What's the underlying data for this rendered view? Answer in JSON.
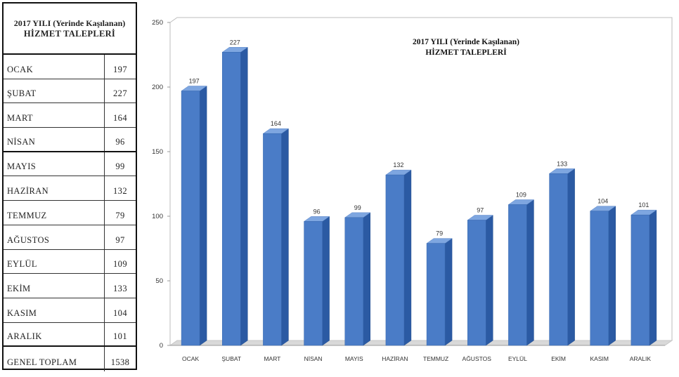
{
  "table": {
    "title_line1": "2017 YILI (Yerinde Kaşılanan)",
    "title_line2": "HİZMET TALEPLERİ",
    "rows": [
      {
        "month": "OCAK",
        "value": "197"
      },
      {
        "month": "ŞUBAT",
        "value": "227"
      },
      {
        "month": "MART",
        "value": "164"
      },
      {
        "month": "NİSAN",
        "value": "96"
      },
      {
        "month": "MAYIS",
        "value": "99"
      },
      {
        "month": "HAZİRAN",
        "value": "132"
      },
      {
        "month": "TEMMUZ",
        "value": "79"
      },
      {
        "month": "AĞUSTOS",
        "value": "97"
      },
      {
        "month": "EYLÜL",
        "value": "109"
      },
      {
        "month": "EKİM",
        "value": "133"
      },
      {
        "month": "KASIM",
        "value": "104"
      },
      {
        "month": "ARALIK",
        "value": "101"
      },
      {
        "month": "GENEL TOPLAM",
        "value": "1538"
      }
    ]
  },
  "chart_data": {
    "type": "bar",
    "title_line1": "2017 YILI (Yerinde Kaşılanan)",
    "title_line2": "HİZMET TALEPLERİ",
    "categories": [
      "OCAK",
      "ŞUBAT",
      "MART",
      "NİSAN",
      "MAYIS",
      "HAZİRAN",
      "TEMMUZ",
      "AĞUSTOS",
      "EYLÜL",
      "EKİM",
      "KASIM",
      "ARALIK"
    ],
    "values": [
      197,
      227,
      164,
      96,
      99,
      132,
      79,
      97,
      109,
      133,
      104,
      101
    ],
    "ylim": [
      0,
      250
    ],
    "yticks": [
      0,
      50,
      100,
      150,
      200,
      250
    ],
    "grid": false,
    "style": "3d-column",
    "colors": {
      "bar_front": "#4a7cc7",
      "bar_side": "#2b5aa3",
      "bar_top": "#7ea6e0",
      "floor": "#d9d9d9"
    }
  }
}
